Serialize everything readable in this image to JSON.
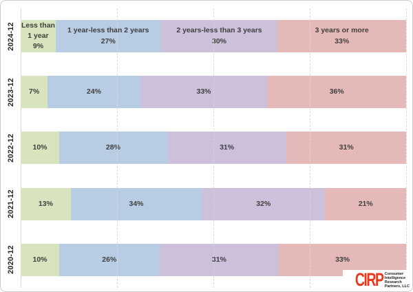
{
  "chart_data": {
    "type": "bar",
    "orientation": "horizontal",
    "stacked": true,
    "unit": "%",
    "categories": [
      "2024-12",
      "2023-12",
      "2022-12",
      "2021-12",
      "2020-12"
    ],
    "series": [
      {
        "name": "Less than 1 year",
        "name_lines": [
          "Less than",
          "1 year"
        ],
        "color": "#d7e4bd",
        "values": [
          9,
          7,
          10,
          13,
          10
        ]
      },
      {
        "name": "1 year-less than 2 years",
        "name_lines": [
          "1 year-less than 2 years"
        ],
        "color": "#b8cce4",
        "values": [
          27,
          24,
          28,
          34,
          26
        ]
      },
      {
        "name": "2 years-less than 3 years",
        "name_lines": [
          "2 years-less than 3 years"
        ],
        "color": "#ccc0da",
        "values": [
          30,
          33,
          31,
          32,
          31
        ]
      },
      {
        "name": "3 years or more",
        "name_lines": [
          "3 years or more"
        ],
        "color": "#e5b9b7",
        "values": [
          33,
          36,
          31,
          21,
          33
        ]
      }
    ],
    "series_names_shown_on_first_row_only": true,
    "xlim": [
      0,
      100
    ],
    "gridlines_pct": [
      25,
      50,
      75,
      100
    ],
    "grid_style": "dashed",
    "legend_position": "none",
    "title": "",
    "xlabel": "",
    "ylabel": "",
    "label_color": "#3f3f3f",
    "grid_color": "#d9d9d9"
  },
  "logo": {
    "abbr": "CIRP",
    "lines": [
      "Consumer",
      "Intelligence",
      "Research",
      "Partners, LLC"
    ],
    "color": "#e8391d"
  }
}
